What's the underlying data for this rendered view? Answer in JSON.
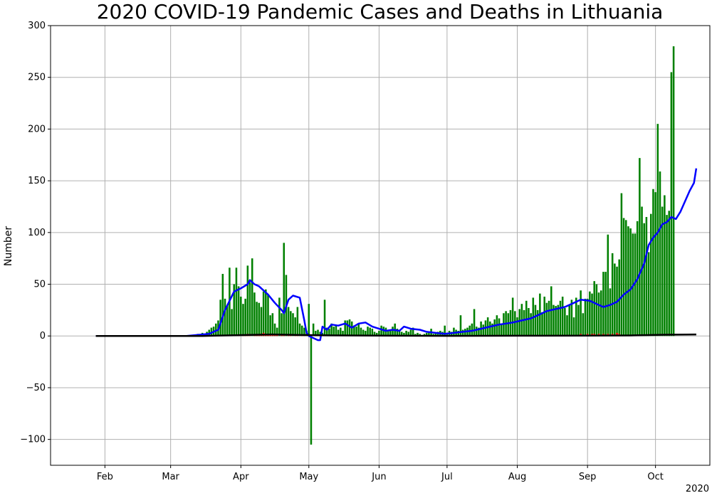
{
  "chart_data": {
    "type": "bar",
    "title": "2020 COVID-19 Pandemic Cases and Deaths in Lithuania",
    "xlabel": "",
    "ylabel": "Number",
    "year_label": "2020",
    "ylim": [
      -125,
      300
    ],
    "yticks": [
      -100,
      -50,
      0,
      50,
      100,
      150,
      200,
      250,
      300
    ],
    "xlim": [
      "2020-01-08",
      "2020-10-25"
    ],
    "xticks": [
      {
        "date": "2020-02-01",
        "label": "Feb"
      },
      {
        "date": "2020-03-01",
        "label": "Mar"
      },
      {
        "date": "2020-04-01",
        "label": "Apr"
      },
      {
        "date": "2020-05-01",
        "label": "May"
      },
      {
        "date": "2020-06-01",
        "label": "Jun"
      },
      {
        "date": "2020-07-01",
        "label": "Jul"
      },
      {
        "date": "2020-08-01",
        "label": "Aug"
      },
      {
        "date": "2020-09-01",
        "label": "Sep"
      },
      {
        "date": "2020-10-01",
        "label": "Oct"
      }
    ],
    "grid": true,
    "colors": {
      "cases": "#008000",
      "deaths": "#ff0000",
      "avg_cases": "#0000ff",
      "avg_deaths": "#000000",
      "grid": "#b0b0b0"
    },
    "series": [
      {
        "type": "bar",
        "start_date": "2020-03-11",
        "values": [
          1,
          0,
          2,
          1,
          3,
          2,
          4,
          6,
          8,
          9,
          12,
          15,
          35,
          60,
          36,
          30,
          66,
          26,
          50,
          66,
          48,
          38,
          31,
          36,
          68,
          52,
          75,
          42,
          33,
          32,
          28,
          43,
          45,
          40,
          20,
          22,
          12,
          8,
          37,
          22,
          90,
          59,
          28,
          24,
          22,
          18,
          28,
          12,
          10,
          8,
          5,
          31,
          -105,
          12,
          5,
          6,
          4,
          3,
          35,
          8,
          7,
          12,
          9,
          10,
          6,
          8,
          5,
          15,
          15,
          16,
          14,
          10,
          9,
          12,
          8,
          6,
          5,
          9,
          8,
          7,
          4,
          3,
          5,
          10,
          9,
          8,
          6,
          5,
          9,
          12,
          7,
          6,
          4,
          3,
          5,
          4,
          6,
          8,
          2,
          3,
          2,
          1,
          2,
          3,
          4,
          7,
          2,
          3,
          4,
          5,
          4,
          10,
          3,
          5,
          4,
          8,
          6,
          5,
          20,
          6,
          7,
          8,
          10,
          12,
          26,
          9,
          8,
          14,
          11,
          15,
          18,
          14,
          12,
          16,
          20,
          17,
          12,
          22,
          24,
          22,
          25,
          37,
          24,
          18,
          26,
          31,
          25,
          34,
          27,
          22,
          37,
          30,
          25,
          41,
          23,
          38,
          32,
          34,
          48,
          30,
          29,
          30,
          34,
          38,
          27,
          20,
          30,
          35,
          18,
          37,
          30,
          44,
          22,
          36,
          36,
          43,
          41,
          53,
          50,
          42,
          44,
          62,
          62,
          98,
          46,
          80,
          70,
          67,
          74,
          138,
          114,
          112,
          106,
          104,
          99,
          99,
          111,
          172,
          125,
          109,
          115,
          81,
          118,
          142,
          139,
          205,
          159,
          125,
          136,
          117,
          121,
          255,
          280
        ]
      },
      {
        "type": "bar",
        "start_date": "2020-03-20",
        "values": [
          0,
          0,
          1,
          0,
          0,
          1,
          1,
          0,
          0,
          1,
          0,
          1,
          0,
          1,
          1,
          2,
          1,
          0,
          1,
          2,
          1,
          2,
          3,
          2,
          1,
          2,
          1,
          1,
          1,
          0,
          1,
          1,
          0,
          1,
          1,
          0,
          1,
          1,
          0,
          1,
          1,
          0,
          0,
          1,
          0,
          1,
          1,
          0,
          0,
          1,
          0,
          0,
          1,
          0,
          0,
          0,
          0,
          1,
          0,
          0,
          0,
          1,
          0,
          0,
          0,
          0,
          1,
          0,
          0,
          0,
          0,
          1,
          0,
          0,
          0,
          0,
          0,
          1,
          0,
          0,
          0,
          0,
          0,
          0,
          0,
          0,
          1,
          0,
          0,
          0,
          0,
          0,
          0,
          0,
          0,
          0,
          0,
          0,
          0,
          0,
          0,
          0,
          0,
          0,
          0,
          0,
          0,
          0,
          0,
          0,
          0,
          0,
          0,
          0,
          0,
          0,
          0,
          0,
          1,
          0,
          0,
          0,
          0,
          0,
          0,
          1,
          0,
          0,
          0,
          0,
          0,
          0,
          0,
          0,
          0,
          0,
          0,
          0,
          0,
          0,
          1,
          0,
          0,
          0,
          0,
          0,
          1,
          0,
          0,
          0,
          0,
          1,
          0,
          1,
          0,
          1,
          0,
          1,
          1,
          1,
          0,
          1,
          2,
          1,
          1,
          2,
          1,
          2,
          2,
          1,
          2,
          1,
          2,
          1,
          2,
          1,
          2,
          1,
          3,
          2
        ]
      },
      {
        "type": "line",
        "points": [
          [
            "2020-01-28",
            0
          ],
          [
            "2020-03-08",
            0
          ],
          [
            "2020-03-18",
            2
          ],
          [
            "2020-03-22",
            6
          ],
          [
            "2020-03-25",
            25
          ],
          [
            "2020-03-29",
            43
          ],
          [
            "2020-04-01",
            46
          ],
          [
            "2020-04-04",
            50
          ],
          [
            "2020-04-05",
            54
          ],
          [
            "2020-04-07",
            50
          ],
          [
            "2020-04-09",
            48
          ],
          [
            "2020-04-13",
            40
          ],
          [
            "2020-04-16",
            32
          ],
          [
            "2020-04-19",
            25
          ],
          [
            "2020-04-20",
            22
          ],
          [
            "2020-04-22",
            35
          ],
          [
            "2020-04-24",
            39
          ],
          [
            "2020-04-27",
            37
          ],
          [
            "2020-04-29",
            15
          ],
          [
            "2020-04-30",
            3
          ],
          [
            "2020-05-01",
            0
          ],
          [
            "2020-05-05",
            -4
          ],
          [
            "2020-05-06",
            -4
          ],
          [
            "2020-05-07",
            9
          ],
          [
            "2020-05-09",
            6
          ],
          [
            "2020-05-11",
            11
          ],
          [
            "2020-05-14",
            10
          ],
          [
            "2020-05-17",
            12
          ],
          [
            "2020-05-20",
            8
          ],
          [
            "2020-05-23",
            12
          ],
          [
            "2020-05-26",
            13
          ],
          [
            "2020-05-29",
            9
          ],
          [
            "2020-06-01",
            7
          ],
          [
            "2020-06-04",
            5
          ],
          [
            "2020-06-07",
            6
          ],
          [
            "2020-06-10",
            5
          ],
          [
            "2020-06-12",
            9
          ],
          [
            "2020-06-15",
            7
          ],
          [
            "2020-06-19",
            6
          ],
          [
            "2020-06-22",
            4
          ],
          [
            "2020-06-26",
            3
          ],
          [
            "2020-06-30",
            2
          ],
          [
            "2020-07-04",
            3
          ],
          [
            "2020-07-08",
            4
          ],
          [
            "2020-07-12",
            5
          ],
          [
            "2020-07-16",
            7
          ],
          [
            "2020-07-20",
            9
          ],
          [
            "2020-07-24",
            11
          ],
          [
            "2020-07-27",
            12
          ],
          [
            "2020-07-30",
            13
          ],
          [
            "2020-08-03",
            15
          ],
          [
            "2020-08-07",
            17
          ],
          [
            "2020-08-10",
            20
          ],
          [
            "2020-08-14",
            24
          ],
          [
            "2020-08-18",
            26
          ],
          [
            "2020-08-22",
            28
          ],
          [
            "2020-08-25",
            31
          ],
          [
            "2020-08-29",
            35
          ],
          [
            "2020-09-02",
            34
          ],
          [
            "2020-09-05",
            31
          ],
          [
            "2020-09-08",
            28
          ],
          [
            "2020-09-11",
            30
          ],
          [
            "2020-09-14",
            33
          ],
          [
            "2020-09-17",
            40
          ],
          [
            "2020-09-20",
            45
          ],
          [
            "2020-09-23",
            55
          ],
          [
            "2020-09-26",
            70
          ],
          [
            "2020-09-28",
            88
          ],
          [
            "2020-09-30",
            95
          ],
          [
            "2020-10-02",
            100
          ],
          [
            "2020-10-04",
            108
          ],
          [
            "2020-10-06",
            110
          ],
          [
            "2020-10-08",
            115
          ],
          [
            "2020-10-10",
            113
          ],
          [
            "2020-10-12",
            120
          ],
          [
            "2020-10-14",
            130
          ],
          [
            "2020-10-16",
            140
          ],
          [
            "2020-10-18",
            148
          ],
          [
            "2020-10-19",
            162
          ]
        ]
      },
      {
        "type": "line",
        "points": [
          [
            "2020-01-28",
            0
          ],
          [
            "2020-03-15",
            0
          ],
          [
            "2020-03-25",
            0.5
          ],
          [
            "2020-04-05",
            1
          ],
          [
            "2020-04-15",
            1.5
          ],
          [
            "2020-04-25",
            1
          ],
          [
            "2020-05-10",
            0.6
          ],
          [
            "2020-06-01",
            0.3
          ],
          [
            "2020-07-01",
            0.1
          ],
          [
            "2020-08-01",
            0.2
          ],
          [
            "2020-09-01",
            0.3
          ],
          [
            "2020-09-20",
            0.5
          ],
          [
            "2020-10-05",
            1.2
          ],
          [
            "2020-10-19",
            1.5
          ]
        ]
      }
    ]
  }
}
